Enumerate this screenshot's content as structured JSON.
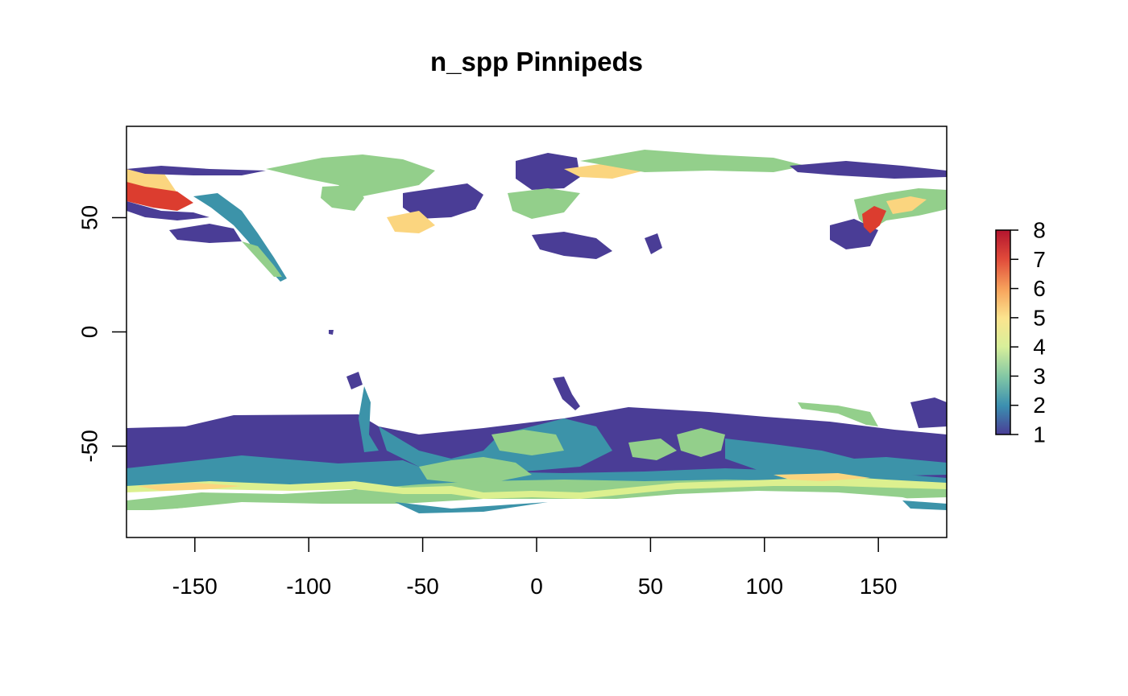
{
  "title": "n_spp Pinnipeds",
  "map": {
    "xlim": [
      -180,
      180
    ],
    "ylim": [
      -90,
      90
    ],
    "x_ticks": [
      -150,
      -100,
      -50,
      0,
      50,
      100,
      150
    ],
    "y_ticks": [
      -50,
      0,
      50
    ]
  },
  "legend": {
    "values": [
      1,
      2,
      3,
      4,
      5,
      6,
      7,
      8
    ],
    "colors": [
      "#4a3d96",
      "#3b8fb0",
      "#80c6a5",
      "#d8ef9a",
      "#fbe48e",
      "#f7a35c",
      "#e04a3a",
      "#b3152e"
    ]
  },
  "colors": {
    "c1": "#4a3d96",
    "c2": "#3c93a9",
    "c3": "#93cf8b",
    "c4": "#dcf08f",
    "c5": "#fbd57f",
    "c6": "#f59a56",
    "c7": "#dc3d2f",
    "c8": "#b3152e"
  }
}
